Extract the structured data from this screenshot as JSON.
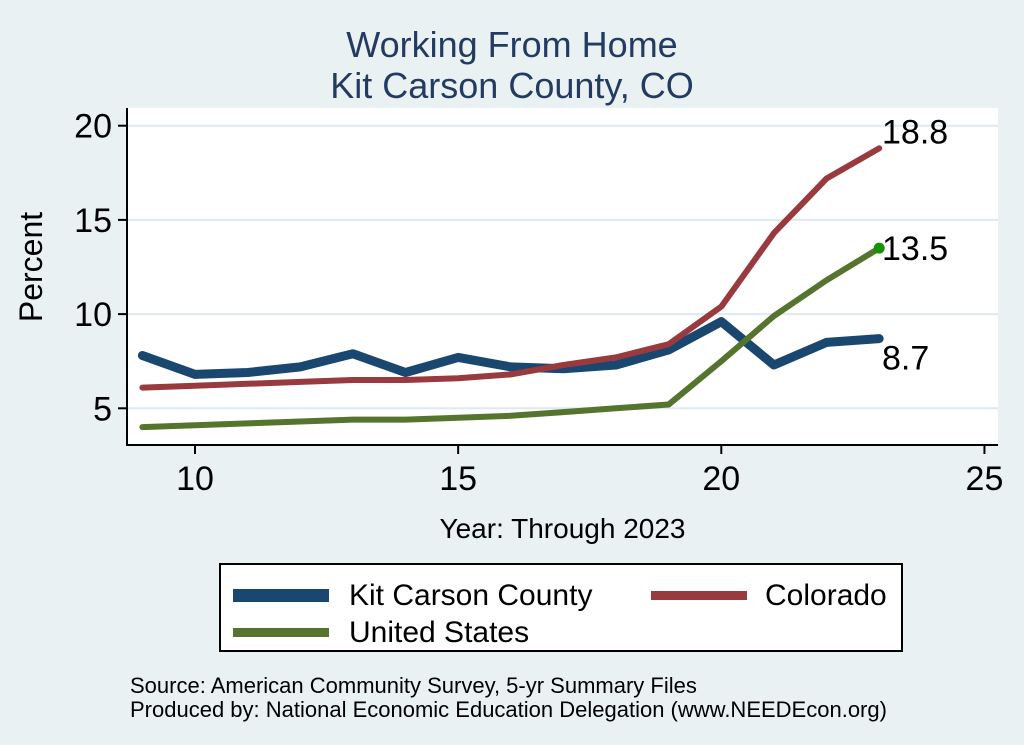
{
  "title": {
    "line1": "Working From Home",
    "line2": "Kit Carson County, CO"
  },
  "chart_data": {
    "type": "line",
    "title": "Working From Home — Kit Carson County, CO",
    "xlabel": "Year: Through 2023",
    "ylabel": "Percent",
    "x": [
      9,
      10,
      11,
      12,
      13,
      14,
      15,
      16,
      17,
      18,
      19,
      20,
      21,
      22,
      23
    ],
    "xticks": [
      10,
      15,
      20,
      25
    ],
    "yticks": [
      5,
      10,
      15,
      20
    ],
    "xlim": [
      8.7,
      25.3
    ],
    "ylim": [
      3.4,
      21.0
    ],
    "grid": true,
    "legend_position": "bottom",
    "series": [
      {
        "name": "Kit Carson County",
        "color": "#1a476f",
        "line_width": 9,
        "values": [
          7.8,
          6.8,
          6.9,
          7.2,
          7.9,
          6.9,
          7.7,
          7.2,
          7.1,
          7.3,
          8.1,
          9.6,
          7.3,
          8.5,
          8.7
        ],
        "end_label": "8.7"
      },
      {
        "name": "Colorado",
        "color": "#993a3e",
        "line_width": 6,
        "values": [
          6.1,
          6.2,
          6.3,
          6.4,
          6.5,
          6.5,
          6.6,
          6.8,
          7.3,
          7.7,
          8.4,
          10.4,
          14.3,
          17.2,
          18.8
        ],
        "end_label": "18.8"
      },
      {
        "name": "United States",
        "color": "#55752f",
        "line_width": 6,
        "values": [
          4.0,
          4.1,
          4.2,
          4.3,
          4.4,
          4.4,
          4.5,
          4.6,
          4.8,
          5.0,
          5.2,
          7.5,
          9.9,
          11.8,
          13.5
        ],
        "end_label": "13.5",
        "end_marker_color": "#109400"
      }
    ]
  },
  "source": {
    "line1": "Source: American Community Survey, 5-yr Summary Files",
    "line2": "Produced by: National Economic Education Delegation (www.NEEDEcon.org)"
  },
  "colors": {
    "background": "#e9f1f3",
    "title": "#243b61",
    "plot_bg": "#ffffff",
    "gridline": "#dfeaf0",
    "axis": "#000000",
    "text": "#000000"
  }
}
